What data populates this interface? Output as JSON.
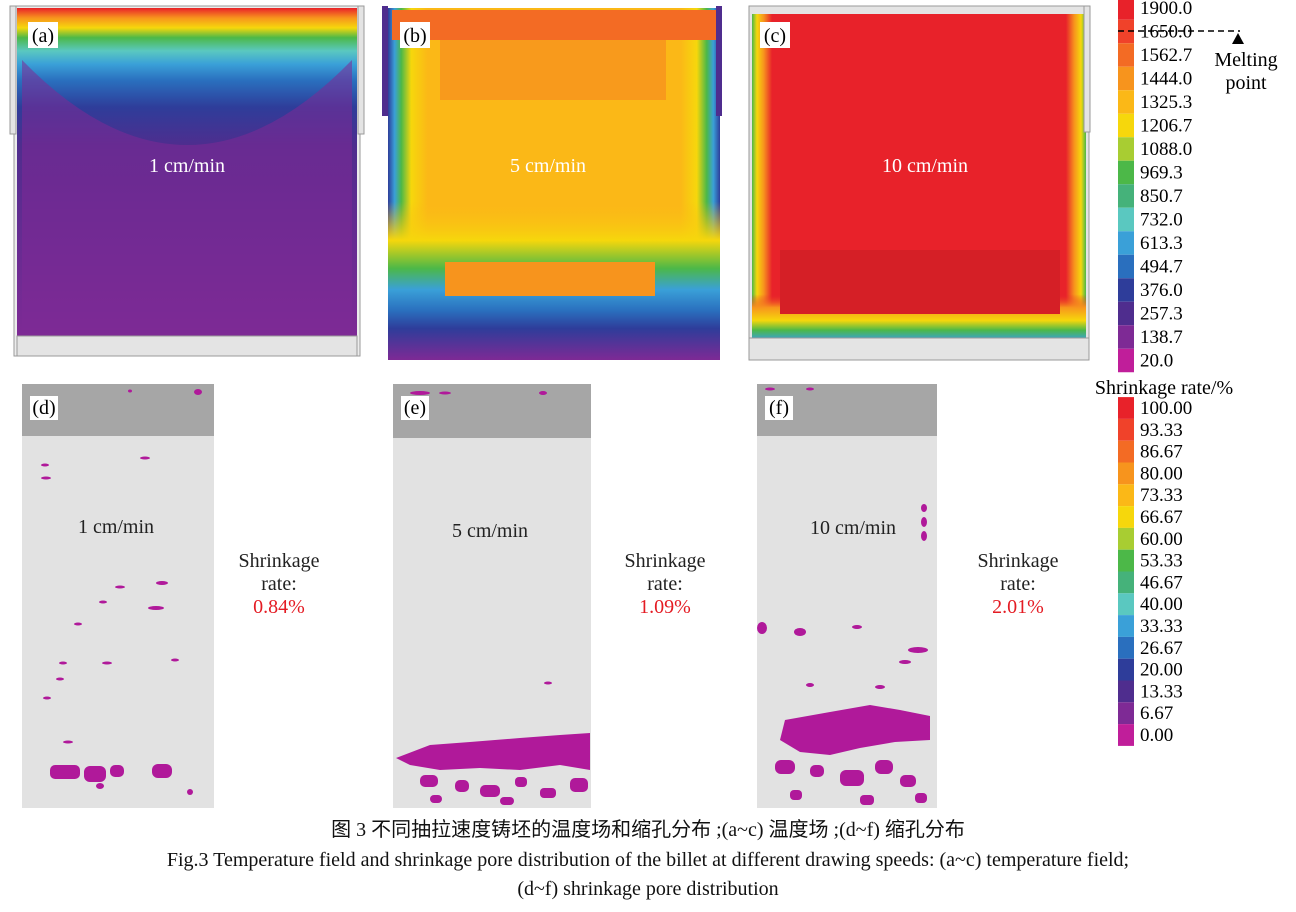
{
  "panels_top": [
    {
      "tag": "(a)",
      "speed": "1 cm/min"
    },
    {
      "tag": "(b)",
      "speed": "5 cm/min"
    },
    {
      "tag": "(c)",
      "speed": "10 cm/min"
    }
  ],
  "panels_bottom": [
    {
      "tag": "(d)",
      "speed": "1 cm/min",
      "shrinkage_label_line1": "Shrinkage",
      "shrinkage_label_line2": "rate:",
      "shrinkage_value": "0.84%"
    },
    {
      "tag": "(e)",
      "speed": "5 cm/min",
      "shrinkage_label_line1": "Shrinkage",
      "shrinkage_label_line2": "rate:",
      "shrinkage_value": "1.09%"
    },
    {
      "tag": "(f)",
      "speed": "10 cm/min",
      "shrinkage_label_line1": "Shrinkage",
      "shrinkage_label_line2": "rate:",
      "shrinkage_value": "2.01%"
    }
  ],
  "temperature_legend": {
    "values": [
      "1900.0",
      "1650.0",
      "1562.7",
      "1444.0",
      "1325.3",
      "1206.7",
      "1088.0",
      "969.3",
      "850.7",
      "732.0",
      "613.3",
      "494.7",
      "376.0",
      "257.3",
      "138.7",
      "20.0"
    ],
    "colors": [
      "#e8222a",
      "#f0422a",
      "#f36b24",
      "#f7941d",
      "#fbb817",
      "#f6d70c",
      "#a8cd32",
      "#4cb848",
      "#45b27a",
      "#5ac8c0",
      "#3aa0d8",
      "#2a6fbe",
      "#2e3d9a",
      "#4f2d8e",
      "#7e2a95",
      "#c01e9a"
    ],
    "melting_label_line1": "Melting",
    "melting_label_line2": "point"
  },
  "shrinkage_legend": {
    "title": "Shrinkage rate/%",
    "values": [
      "100.00",
      "93.33",
      "86.67",
      "80.00",
      "73.33",
      "66.67",
      "60.00",
      "53.33",
      "46.67",
      "40.00",
      "33.33",
      "26.67",
      "20.00",
      "13.33",
      "6.67",
      "0.00"
    ],
    "colors": [
      "#e8222a",
      "#f0422a",
      "#f36b24",
      "#f7941d",
      "#fbb817",
      "#f6d70c",
      "#a8cd32",
      "#4cb848",
      "#45b27a",
      "#5ac8c0",
      "#3aa0d8",
      "#2a6fbe",
      "#2e3d9a",
      "#4f2d8e",
      "#7e2a95",
      "#c01e9a"
    ]
  },
  "colors": {
    "pore": "#b0199a",
    "shrink_value": "#e41b23",
    "mold": "#e4e4e4",
    "billet_bg": "#e2e2e2",
    "riser": "#a6a6a6"
  },
  "caption": {
    "cn": "图 3 不同抽拉速度铸坯的温度场和缩孔分布 ;(a~c) 温度场 ;(d~f) 缩孔分布",
    "en_line1": "Fig.3  Temperature field and shrinkage pore distribution of the billet at different drawing speeds: (a~c) temperature field;",
    "en_line2": "(d~f) shrinkage pore distribution"
  }
}
